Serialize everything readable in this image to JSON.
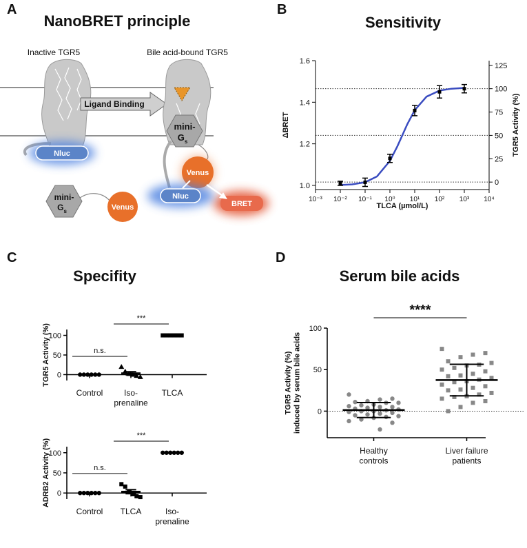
{
  "panel_labels": [
    "A",
    "B",
    "C",
    "D"
  ],
  "diagram": {
    "title": "NanoBRET principle",
    "inactive_label": "Inactive TGR5",
    "active_label": "Bile acid-bound TGR5",
    "arrow_label": "Ligand Binding",
    "inactive": {
      "nluc": "Nluc",
      "mini_g": "mini-",
      "mini_g_letter": "G",
      "mini_g_subscript": "s",
      "venus": "Venus"
    },
    "active": {
      "nluc": "Nluc",
      "mini_g": "mini-",
      "mini_g_letter": "G",
      "mini_g_subscript": "s",
      "venus": "Venus",
      "bret": "BRET"
    }
  },
  "chart_data": [
    {
      "type": "line",
      "title": "Sensitivity",
      "x_label": "TLCA (µmol/L)",
      "y_label": "ΔBRET",
      "y2_label": "TGR5 Activity (%)",
      "x_scale": "log",
      "xlim": [
        0.001,
        10000
      ],
      "xticks": [
        {
          "value": 0.001,
          "label": "10⁻³"
        },
        {
          "value": 0.01,
          "label": "10⁻²"
        },
        {
          "value": 0.1,
          "label": "10⁻¹"
        },
        {
          "value": 1,
          "label": "10⁰"
        },
        {
          "value": 10,
          "label": "10¹"
        },
        {
          "value": 100,
          "label": "10²"
        },
        {
          "value": 1000,
          "label": "10³"
        },
        {
          "value": 10000,
          "label": "10⁴"
        }
      ],
      "ylim": [
        0.98,
        1.6
      ],
      "yticks": [
        {
          "value": 1,
          "label": "1.0"
        },
        1.2,
        1.4,
        1.6
      ],
      "y2lim": [
        -8,
        130
      ],
      "y2ticks": [
        0,
        25,
        50,
        75,
        100,
        125
      ],
      "y2_reference_lines": [
        0,
        50,
        100
      ],
      "x": [
        0.01,
        0.1,
        1,
        10,
        100,
        1000
      ],
      "values": [
        1.01,
        1.015,
        1.13,
        1.36,
        1.45,
        1.465
      ],
      "errors": [
        0.01,
        0.02,
        0.02,
        0.025,
        0.03,
        0.02
      ],
      "color": "#000000",
      "fit": {
        "x": [
          0.01,
          0.03,
          0.1,
          0.3,
          1,
          2,
          3,
          5,
          10,
          30,
          100,
          300,
          1000
        ],
        "values": [
          1.002,
          1.005,
          1.015,
          1.043,
          1.118,
          1.188,
          1.235,
          1.294,
          1.362,
          1.427,
          1.456,
          1.465,
          1.469
        ],
        "color": "#3a4cc0"
      }
    },
    {
      "type": "scatter",
      "title": "Specifity",
      "y_label": "TGR5 Activity (%)",
      "ylim": [
        -15,
        115
      ],
      "yticks": [
        0,
        50,
        100
      ],
      "categories": [
        "Control",
        "Iso-\nprenaline",
        "TLCA"
      ],
      "points": [
        [
          0,
          0,
          0,
          0,
          0,
          0
        ],
        [
          20,
          8,
          2,
          0,
          -3,
          -6
        ],
        [
          100,
          100,
          100,
          100,
          100,
          100
        ]
      ],
      "markers": [
        "circle",
        "triangle",
        "square"
      ],
      "means": [
        0,
        3.5,
        100
      ],
      "errors": [
        0.3,
        4,
        0.3
      ],
      "color": "#000000",
      "baseline": "axis",
      "significance": [
        {
          "between": [
            0,
            1
          ],
          "label": "n.s."
        },
        {
          "between": [
            1,
            2
          ],
          "label": "***"
        }
      ]
    },
    {
      "type": "scatter",
      "y_label": "ADRB2 Activity (%)",
      "ylim": [
        -15,
        115
      ],
      "yticks": [
        0,
        50,
        100
      ],
      "categories": [
        "Control",
        "TLCA",
        "Iso-\nprenaline"
      ],
      "points": [
        [
          0,
          0,
          0,
          0,
          0,
          0
        ],
        [
          22,
          16,
          3,
          -3,
          -8,
          -10
        ],
        [
          100,
          100,
          100,
          100,
          100,
          100
        ]
      ],
      "markers": [
        "circle",
        "square",
        "circle"
      ],
      "means": [
        0,
        3.3,
        100
      ],
      "errors": [
        0.3,
        5,
        0.3
      ],
      "color": "#000000",
      "baseline": "axis",
      "significance": [
        {
          "between": [
            0,
            1
          ],
          "label": "n.s."
        },
        {
          "between": [
            1,
            2
          ],
          "label": "***"
        }
      ]
    },
    {
      "type": "scatter",
      "title": "Serum bile acids",
      "y_label": "TGR5 Activity (%)\ninduced by serum bile acids",
      "ylim": [
        -32,
        100
      ],
      "yticks": [
        0,
        50,
        100
      ],
      "categories": [
        "Healthy\ncontrols",
        "Liver failure\npatients"
      ],
      "points": [
        [
          20,
          15,
          14,
          12,
          11,
          10,
          10,
          8,
          7,
          6,
          5,
          5,
          4,
          3,
          2,
          1,
          0,
          0,
          -1,
          -2,
          -3,
          -4,
          -5,
          -6,
          -7,
          -8,
          -10,
          -12,
          -14,
          -22
        ],
        [
          75,
          70,
          68,
          65,
          60,
          58,
          56,
          55,
          52,
          50,
          48,
          45,
          43,
          42,
          40,
          38,
          36,
          35,
          32,
          30,
          28,
          26,
          25,
          22,
          20,
          18,
          17,
          15,
          12,
          10,
          5,
          0
        ]
      ],
      "markers": [
        "circle",
        "square"
      ],
      "means": [
        1.3,
        37.4
      ],
      "errors": [
        9,
        19
      ],
      "color": "#888888",
      "baseline": "dotted",
      "significance": [
        {
          "between": [
            0,
            1
          ],
          "label": "****"
        }
      ]
    }
  ]
}
